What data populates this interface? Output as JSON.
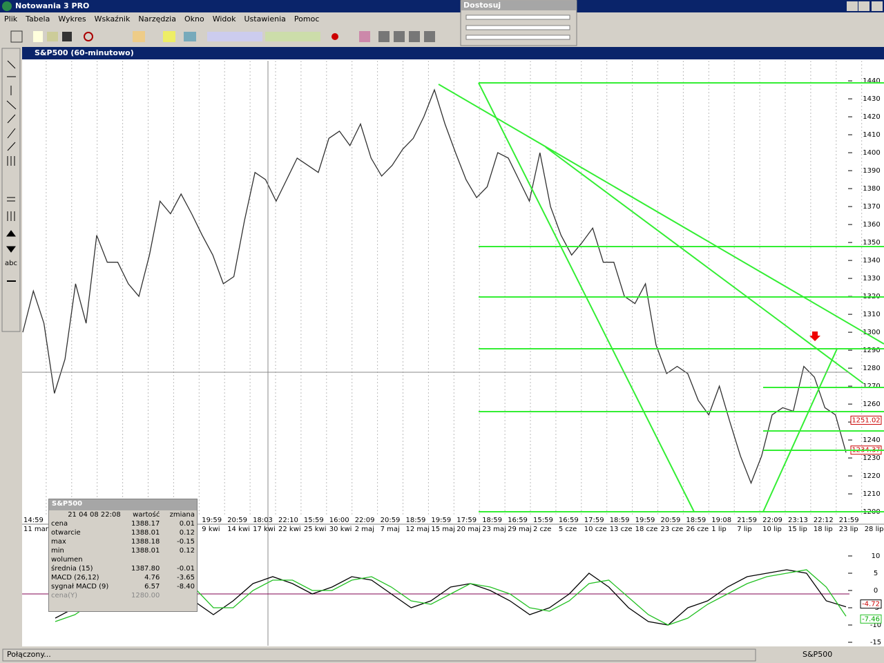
{
  "app": {
    "title": "Notowania 3 PRO",
    "menu": [
      "Plik",
      "Tabela",
      "Wykres",
      "Wskaźnik",
      "Narzędzia",
      "Okno",
      "Widok",
      "Ustawienia",
      "Pomoc"
    ],
    "status": "Połączony...",
    "status_symbol": "S&P500"
  },
  "dostosuj": {
    "title": "Dostosuj"
  },
  "left_toolbar": {
    "text_tool": "abc"
  },
  "chart_window": {
    "title": "S&P500 (60-minutowo)"
  },
  "chart_data": [
    {
      "type": "line",
      "color": "#303030",
      "values": [
        1300,
        1323,
        1305,
        1266,
        1285,
        1327,
        1305,
        1354,
        1339,
        1339,
        1327,
        1320,
        1343,
        1373,
        1366,
        1377,
        1366,
        1354,
        1343,
        1327,
        1331,
        1362,
        1389,
        1385,
        1373,
        1385,
        1397,
        1393,
        1389,
        1408,
        1412,
        1404,
        1416,
        1397,
        1387,
        1393,
        1402,
        1408,
        1420,
        1435,
        1416,
        1400,
        1385,
        1375,
        1381,
        1400,
        1397,
        1385,
        1373,
        1400,
        1370,
        1354,
        1343,
        1350,
        1358,
        1339,
        1339,
        1320,
        1316,
        1327,
        1293,
        1277,
        1281,
        1277,
        1262,
        1254,
        1270,
        1250,
        1231,
        1216,
        1231,
        1254,
        1258,
        1256,
        1281,
        1275,
        1258,
        1254,
        1233
      ],
      "ylim": [
        1198.5,
        1448.5
      ],
      "yticks": [
        1200,
        1210,
        1220,
        1230,
        1240,
        1250,
        1260,
        1270,
        1280,
        1290,
        1300,
        1310,
        1320,
        1330,
        1340,
        1350,
        1360,
        1370,
        1380,
        1390,
        1400,
        1410,
        1420,
        1430,
        1440
      ],
      "time_labels": [
        "14:59",
        null,
        null,
        null,
        null,
        null,
        null,
        "19:59",
        "20:59",
        "18:03",
        "22:10",
        "15:59",
        "16:00",
        "22:09",
        "20:59",
        "18:59",
        "19:59",
        "17:59",
        "18:59",
        "16:59",
        "15:59",
        "16:59",
        "17:59",
        "18:59",
        "19:59",
        "20:59",
        "18:59",
        "19:08",
        "21:59",
        "22:09",
        "23:13",
        "22:12",
        "21:59",
        null
      ],
      "date_labels": [
        "11 mar",
        null,
        null,
        null,
        null,
        null,
        null,
        "9 kwi",
        "14 kwi",
        "17 kwi",
        "22 kwi",
        "25 kwi",
        "30 kwi",
        "2 maj",
        "7 maj",
        "12 maj",
        "15 maj",
        "20 maj",
        "23 maj",
        "29 maj",
        "2 cze",
        "5 cze",
        "10 cze",
        "13 cze",
        "18 cze",
        "23 cze",
        "26 cze",
        "1 lip",
        "7 lip",
        "10 lip",
        "15 lip",
        "18 lip",
        "23 lip",
        "28 lip"
      ],
      "price_tags": [
        1251.02,
        1234.37
      ]
    },
    {
      "type": "line",
      "series": [
        {
          "color": "#000000",
          "values": [
            -8,
            -5,
            -1,
            4,
            9,
            11,
            5,
            -3,
            -7,
            -3,
            2,
            4,
            2,
            -1,
            1,
            4,
            3,
            -1,
            -5,
            -3,
            1,
            2,
            0,
            -3,
            -7,
            -5,
            -1,
            5,
            1,
            -5,
            -9,
            -10,
            -5,
            -3,
            1,
            4,
            5,
            6,
            5,
            -3,
            -4.72
          ]
        },
        {
          "color": "#22c022",
          "values": [
            -9,
            -7,
            -3,
            1,
            6,
            10,
            8,
            1,
            -5,
            -5,
            0,
            3,
            3,
            0,
            0,
            3,
            4,
            1,
            -3,
            -4,
            -1,
            2,
            1,
            -1,
            -5,
            -6,
            -3,
            2,
            3,
            -2,
            -7,
            -10,
            -8,
            -4,
            -1,
            2,
            4,
            5,
            6,
            1,
            -7.46
          ]
        }
      ],
      "ylim": [
        -16,
        16
      ],
      "yticks": [
        10,
        5,
        0,
        -5,
        -10,
        -15
      ],
      "value_tags": [
        -4.72,
        -7.46
      ]
    }
  ],
  "info_panel": {
    "title": "S&P500",
    "date": "21 04 08 22:08",
    "columns": [
      "wartość",
      "zmiana"
    ],
    "rows": [
      [
        "cena",
        "1388.17",
        "0.01"
      ],
      [
        "otwarcie",
        "1388.01",
        "0.12"
      ],
      [
        "max",
        "1388.18",
        "-0.15"
      ],
      [
        "min",
        "1388.01",
        "0.12"
      ],
      [
        "wolumen"
      ],
      [
        "średnia (15)",
        "1387.80",
        "-0.01"
      ],
      [
        "MACD (26,12)",
        "4.76",
        "-3.65"
      ],
      [
        "sygnał MACD (9)",
        "6.57",
        "-8.40"
      ],
      [
        "cena(Y)",
        "1280.00"
      ]
    ]
  }
}
